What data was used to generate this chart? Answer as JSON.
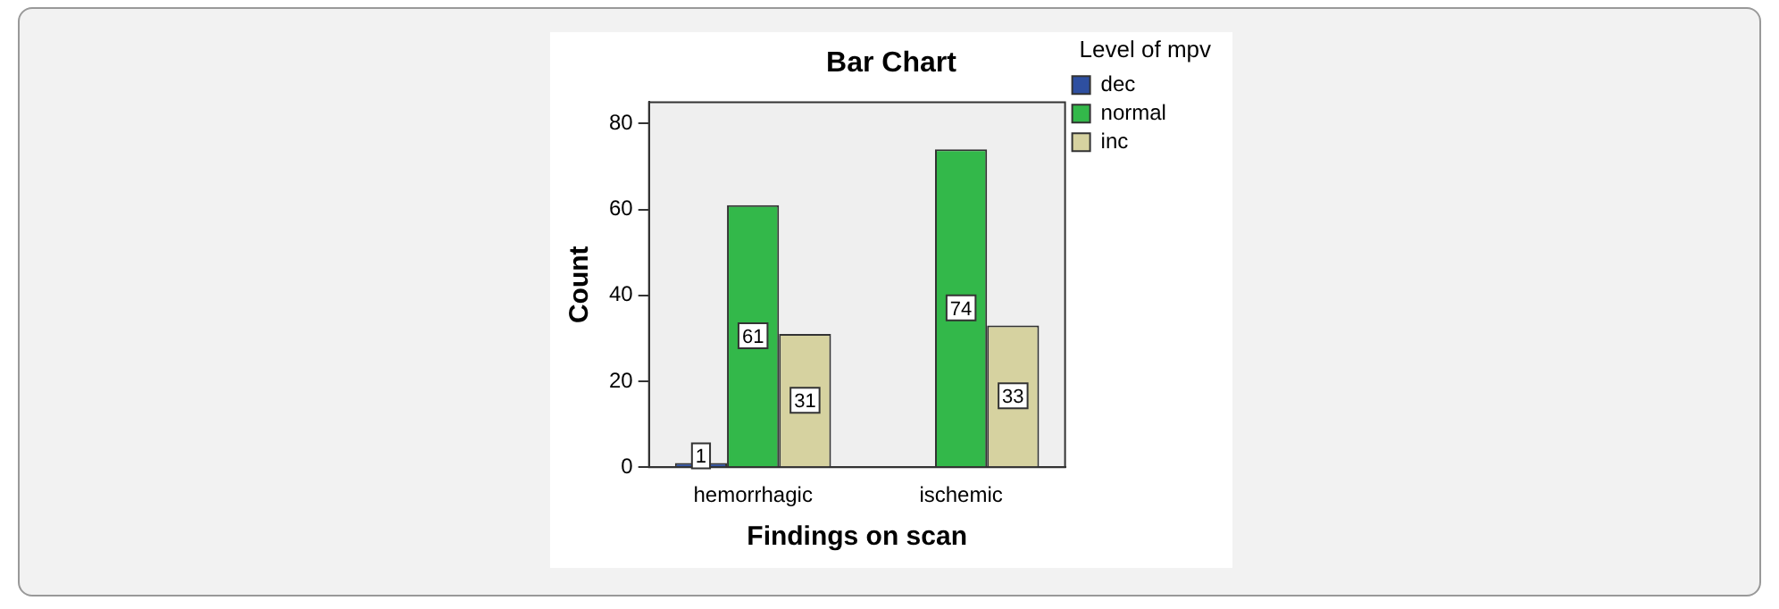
{
  "chart_data": {
    "type": "bar",
    "title": "Bar Chart",
    "xlabel": "Findings on scan",
    "ylabel": "Count",
    "legend_title": "Level of mpv",
    "categories": [
      "hemorrhagic",
      "ischemic"
    ],
    "series": [
      {
        "name": "dec",
        "color": "#2e4fa0",
        "values": [
          1,
          null
        ]
      },
      {
        "name": "normal",
        "color": "#33b84a",
        "values": [
          61,
          74
        ]
      },
      {
        "name": "inc",
        "color": "#d6d2a0",
        "values": [
          31,
          33
        ]
      }
    ],
    "ylim": [
      0,
      85
    ],
    "yticks": [
      0,
      20,
      40,
      60,
      80
    ],
    "grid": false,
    "legend": "right",
    "data_labels": true
  }
}
